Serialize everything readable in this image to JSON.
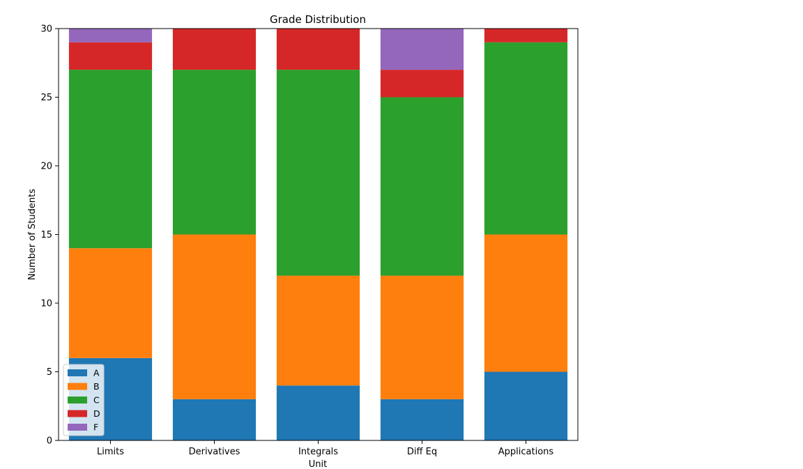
{
  "chart_data": {
    "type": "bar",
    "stacked": true,
    "title": "Grade Distribution",
    "xlabel": "Unit",
    "ylabel": "Number of Students",
    "categories": [
      "Limits",
      "Derivatives",
      "Integrals",
      "Diff Eq",
      "Applications"
    ],
    "series": [
      {
        "name": "A",
        "color": "#1f77b4",
        "values": [
          6,
          3,
          4,
          3,
          5
        ]
      },
      {
        "name": "B",
        "color": "#ff7f0e",
        "values": [
          8,
          12,
          8,
          9,
          10
        ]
      },
      {
        "name": "C",
        "color": "#2ca02c",
        "values": [
          13,
          12,
          15,
          13,
          14
        ]
      },
      {
        "name": "D",
        "color": "#d62728",
        "values": [
          2,
          3,
          3,
          2,
          1
        ]
      },
      {
        "name": "F",
        "color": "#9467bd",
        "values": [
          1,
          0,
          0,
          3,
          0
        ]
      }
    ],
    "ylim": [
      0,
      30
    ],
    "yticks": [
      0,
      5,
      10,
      15,
      20,
      25,
      30
    ],
    "grid": false,
    "legend_position": "lower-left"
  }
}
